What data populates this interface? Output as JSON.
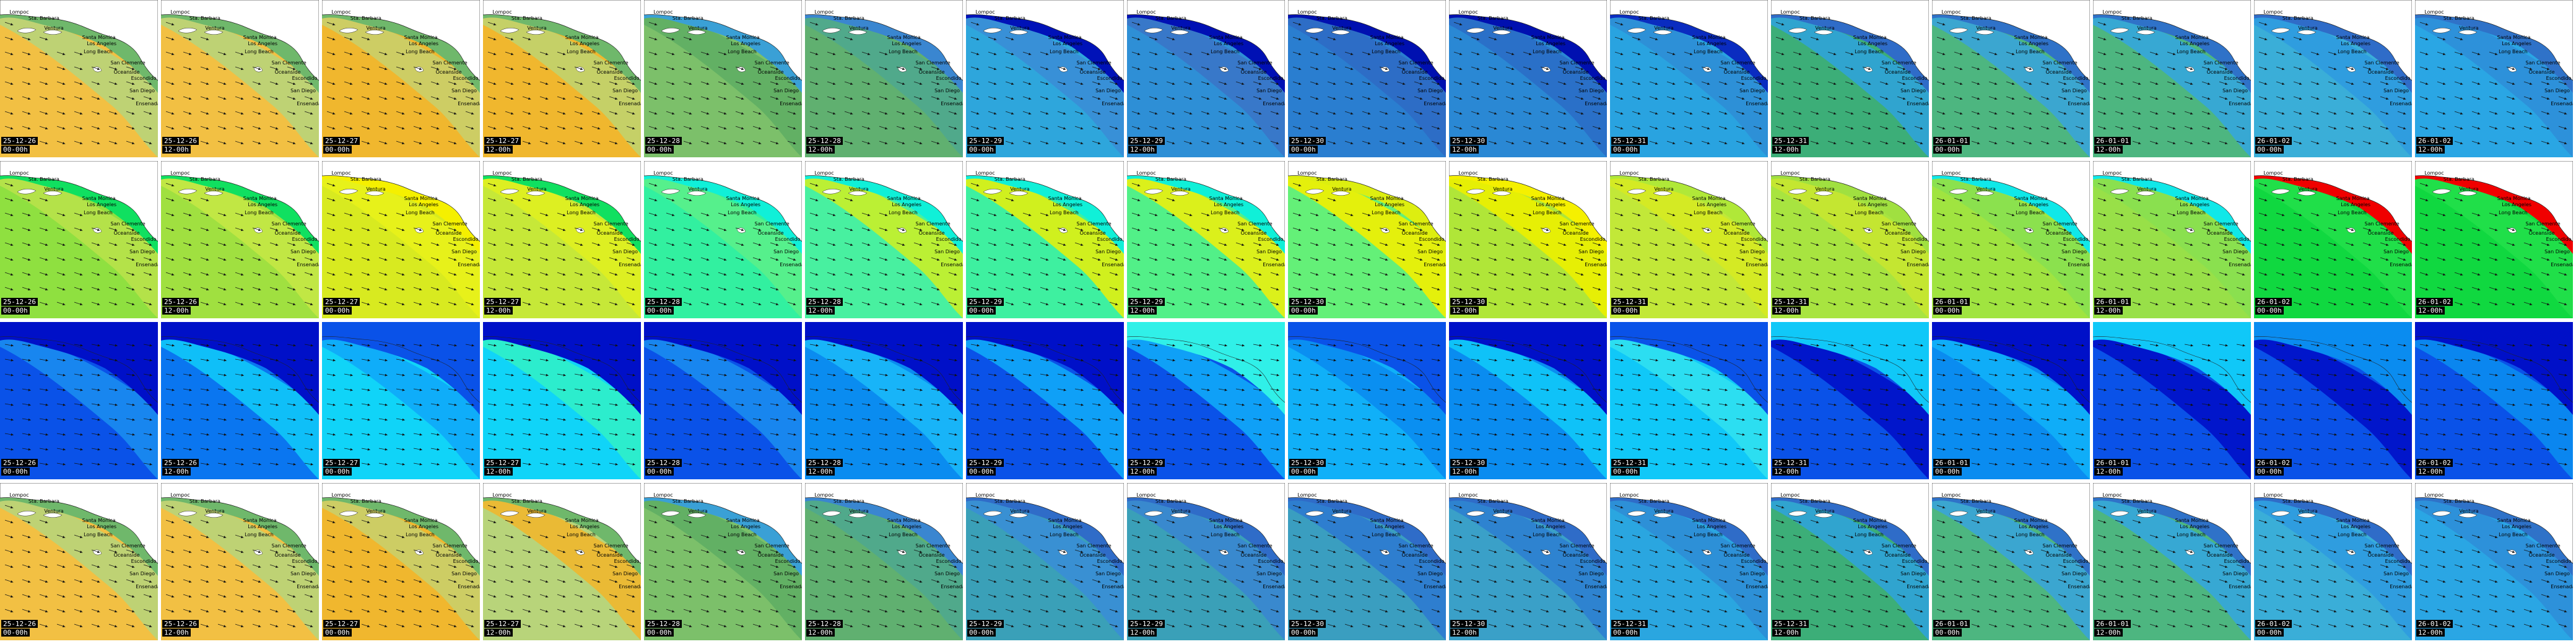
{
  "grid": {
    "rows": 4,
    "columns": 16
  },
  "place_labels": [
    "Lompoc",
    "Sta. Barbara",
    "Ventura",
    "Santa Monica",
    "Los Angeles",
    "Long Beach",
    "San Clemente",
    "Oceanside",
    "Escondido",
    "San Diego",
    "Ensenada"
  ],
  "columns": [
    {
      "date": "25-12-26",
      "time": "00-00h"
    },
    {
      "date": "25-12-26",
      "time": "12-00h"
    },
    {
      "date": "25-12-27",
      "time": "00-00h"
    },
    {
      "date": "25-12-27",
      "time": "12-00h"
    },
    {
      "date": "25-12-28",
      "time": "00-00h"
    },
    {
      "date": "25-12-28",
      "time": "12-00h"
    },
    {
      "date": "25-12-29",
      "time": "00-00h"
    },
    {
      "date": "25-12-29",
      "time": "12-00h"
    },
    {
      "date": "25-12-30",
      "time": "00-00h"
    },
    {
      "date": "25-12-30",
      "time": "12-00h"
    },
    {
      "date": "25-12-31",
      "time": "00-00h"
    },
    {
      "date": "25-12-31",
      "time": "12-00h"
    },
    {
      "date": "26-01-01",
      "time": "00-00h"
    },
    {
      "date": "26-01-01",
      "time": "12-00h"
    },
    {
      "date": "26-01-02",
      "time": "00-00h"
    },
    {
      "date": "26-01-02",
      "time": "12-00h"
    }
  ],
  "rows": [
    {
      "name": "wave-height-map",
      "show_places": true,
      "tiles": [
        {
          "bg": "#f2c043",
          "mid": "#b8d47a",
          "coast": "#6fb86b"
        },
        {
          "bg": "#f2c043",
          "mid": "#b8d47a",
          "coast": "#6fb86b"
        },
        {
          "bg": "#f0b72e",
          "mid": "#c9cf6a",
          "coast": "#6fb86b"
        },
        {
          "bg": "#f0b72e",
          "mid": "#c0d36e",
          "coast": "#6fb86b"
        },
        {
          "bg": "#7cc06a",
          "mid": "#5fae64",
          "coast": "#3aa0d6"
        },
        {
          "bg": "#60b070",
          "mid": "#4fa88e",
          "coast": "#3a86d0"
        },
        {
          "bg": "#2ea6dc",
          "mid": "#3a8ed6",
          "coast": "#0012b8"
        },
        {
          "bg": "#2e8fd6",
          "mid": "#3a76c8",
          "coast": "#0010b4"
        },
        {
          "bg": "#2a7ed0",
          "mid": "#2e6bc4",
          "coast": "#0010b0"
        },
        {
          "bg": "#2a88d4",
          "mid": "#2a6ec6",
          "coast": "#0010b0"
        },
        {
          "bg": "#29a3e0",
          "mid": "#2e8ed6",
          "coast": "#0a2cc0"
        },
        {
          "bg": "#3cae78",
          "mid": "#2fa3d8",
          "coast": "#2f6cc8"
        },
        {
          "bg": "#4db680",
          "mid": "#3aa4d8",
          "coast": "#2f72c8"
        },
        {
          "bg": "#4db680",
          "mid": "#35a6dc",
          "coast": "#2f72c8"
        },
        {
          "bg": "#3aaed8",
          "mid": "#2f9be0",
          "coast": "#2f6cc8"
        },
        {
          "bg": "#2aa6e4",
          "mid": "#2d8fd8",
          "coast": "#2f72c8"
        }
      ]
    },
    {
      "name": "wave-period-map",
      "show_places": true,
      "tiles": [
        {
          "bg": "#8fe040",
          "mid": "#b8e24a",
          "coast": "#10e060"
        },
        {
          "bg": "#a0e040",
          "mid": "#c4e845",
          "coast": "#10e060"
        },
        {
          "bg": "#d8ea20",
          "mid": "#e9f21a",
          "coast": "#f5f000"
        },
        {
          "bg": "#c6e838",
          "mid": "#dff020",
          "coast": "#10e060"
        },
        {
          "bg": "#32f0a0",
          "mid": "#5af08a",
          "coast": "#10f0d8"
        },
        {
          "bg": "#48f0a0",
          "mid": "#c8f028",
          "coast": "#10f0d8"
        },
        {
          "bg": "#3ef0a0",
          "mid": "#e0f010",
          "coast": "#10f0d8"
        },
        {
          "bg": "#52f088",
          "mid": "#eaf010",
          "coast": "#10f0d8"
        },
        {
          "bg": "#64f078",
          "mid": "#f2f000",
          "coast": "#ddee10"
        },
        {
          "bg": "#b0e638",
          "mid": "#ecf000",
          "coast": "#f5f000"
        },
        {
          "bg": "#c2e838",
          "mid": "#d6ea22",
          "coast": "#b0e838"
        },
        {
          "bg": "#a8e440",
          "mid": "#c6e630",
          "coast": "#a0e040"
        },
        {
          "bg": "#a0e440",
          "mid": "#88e050",
          "coast": "#10e8e8"
        },
        {
          "bg": "#98e048",
          "mid": "#88e050",
          "coast": "#10e8e8"
        },
        {
          "bg": "#10d840",
          "mid": "#22e04a",
          "coast": "#f00000"
        },
        {
          "bg": "#10d840",
          "mid": "#22e04a",
          "coast": "#f00000"
        }
      ]
    },
    {
      "name": "wind-speed-map",
      "show_places": false,
      "tiles": [
        {
          "bg": "#0a52e8",
          "mid": "#1a8cf0",
          "coast": "#0010c8"
        },
        {
          "bg": "#0a76f0",
          "mid": "#10c8f8",
          "coast": "#0010c8"
        },
        {
          "bg": "#10d4f8",
          "mid": "#10a8f8",
          "coast": "#0a52e8"
        },
        {
          "bg": "#10d4f8",
          "mid": "#30f0c8",
          "coast": "#0010c8"
        },
        {
          "bg": "#0a52e8",
          "mid": "#1a8cf0",
          "coast": "#0010c8"
        },
        {
          "bg": "#0a8cf0",
          "mid": "#1ab8f8",
          "coast": "#0010c8"
        },
        {
          "bg": "#0a52e8",
          "mid": "#10a8f8",
          "coast": "#0010c8"
        },
        {
          "bg": "#0a52e8",
          "mid": "#10a8f8",
          "coast": "#30f0e8"
        },
        {
          "bg": "#10b0f8",
          "mid": "#0a8cf0",
          "coast": "#0a52e8"
        },
        {
          "bg": "#0a8cf0",
          "mid": "#10c8f8",
          "coast": "#0010c8"
        },
        {
          "bg": "#10c8f8",
          "mid": "#30e0f0",
          "coast": "#0a52e8"
        },
        {
          "bg": "#0a52e8",
          "mid": "#0010c8",
          "coast": "#10c8f8"
        },
        {
          "bg": "#0a8cf0",
          "mid": "#10b0f8",
          "coast": "#0010c8"
        },
        {
          "bg": "#0a52e8",
          "mid": "#0010c8",
          "coast": "#10c8f8"
        },
        {
          "bg": "#0a52e8",
          "mid": "#0010c8",
          "coast": "#0a8cf0"
        },
        {
          "bg": "#0a52e8",
          "mid": "#0a8cf0",
          "coast": "#0010c8"
        }
      ]
    },
    {
      "name": "swell-height-map",
      "show_places": true,
      "tiles": [
        {
          "bg": "#f2c043",
          "mid": "#b8d47a",
          "coast": "#6fb86b"
        },
        {
          "bg": "#f2c043",
          "mid": "#b8d47a",
          "coast": "#6fb86b"
        },
        {
          "bg": "#f0b72e",
          "mid": "#c9cf6a",
          "coast": "#6fb86b"
        },
        {
          "bg": "#b8d47a",
          "mid": "#f0b72e",
          "coast": "#6fb86b"
        },
        {
          "bg": "#7cc06a",
          "mid": "#5fae64",
          "coast": "#3aa0d6"
        },
        {
          "bg": "#60b070",
          "mid": "#4fa88e",
          "coast": "#3a86d0"
        },
        {
          "bg": "#3aa0b8",
          "mid": "#3a8ed6",
          "coast": "#2f6cc8"
        },
        {
          "bg": "#3aa0b8",
          "mid": "#3a86d0",
          "coast": "#2f6cc8"
        },
        {
          "bg": "#3a9ec0",
          "mid": "#2e7ad0",
          "coast": "#2f6cc8"
        },
        {
          "bg": "#3aa0c8",
          "mid": "#2e80d0",
          "coast": "#2f6cc8"
        },
        {
          "bg": "#2aa6e0",
          "mid": "#2e8ed6",
          "coast": "#2f6cc8"
        },
        {
          "bg": "#3cae78",
          "mid": "#2fa3d8",
          "coast": "#2f6cc8"
        },
        {
          "bg": "#4db680",
          "mid": "#3aa4d8",
          "coast": "#2f72c8"
        },
        {
          "bg": "#4db680",
          "mid": "#35a6dc",
          "coast": "#2f72c8"
        },
        {
          "bg": "#3aaed8",
          "mid": "#2f9be0",
          "coast": "#2f6cc8"
        },
        {
          "bg": "#2aa6e4",
          "mid": "#2d8fd8",
          "coast": "#2f72c8"
        }
      ]
    }
  ]
}
